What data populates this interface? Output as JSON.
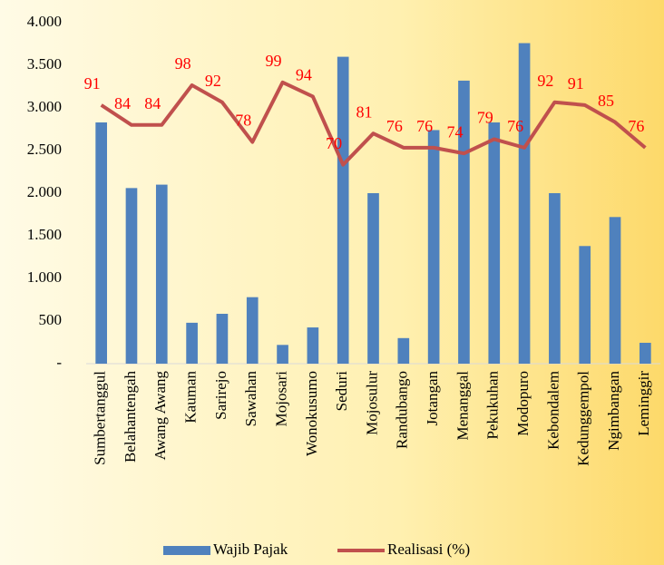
{
  "chart_data": {
    "type": "bar_line",
    "categories": [
      "Sumbertanggul",
      "Belahantengah",
      "Awang Awang",
      "Kauman",
      "Sarirejo",
      "Sawahan",
      "Mojosari",
      "Wonokusumo",
      "Seduri",
      "Mojosulur",
      "Randubango",
      "Jotangan",
      "Menanggal",
      "Pekukuhan",
      "Modopuro",
      "Kebondalem",
      "Kedunggempol",
      "Ngimbangan",
      "Leminggir"
    ],
    "series": [
      {
        "name": "Wajib Pajak",
        "type": "bar",
        "color": "#4f81bd",
        "values": [
          2830,
          2060,
          2100,
          480,
          585,
          780,
          220,
          425,
          3600,
          2000,
          300,
          2740,
          3320,
          2830,
          3760,
          2000,
          1380,
          1720,
          245
        ]
      },
      {
        "name": "Realisasi (%)",
        "type": "line",
        "axis": "y2",
        "color": "#c0504d",
        "label_color": "#ff0000",
        "values": [
          91,
          84,
          84,
          98,
          92,
          78,
          99,
          94,
          70,
          81,
          76,
          76,
          74,
          79,
          76,
          92,
          91,
          85,
          76
        ]
      }
    ],
    "ylim": [
      0,
      4000
    ],
    "yticks": [
      {
        "value": 0,
        "label": "-"
      },
      {
        "value": 500,
        "label": "500"
      },
      {
        "value": 1000,
        "label": "1.000"
      },
      {
        "value": 1500,
        "label": "1.500"
      },
      {
        "value": 2000,
        "label": "2.000"
      },
      {
        "value": 2500,
        "label": "2.500"
      },
      {
        "value": 3000,
        "label": "3.000"
      },
      {
        "value": 3500,
        "label": "3.500"
      },
      {
        "value": 4000,
        "label": "4.000"
      }
    ],
    "y2lim": [
      0,
      120
    ],
    "grid": false,
    "legend": "bottom"
  }
}
